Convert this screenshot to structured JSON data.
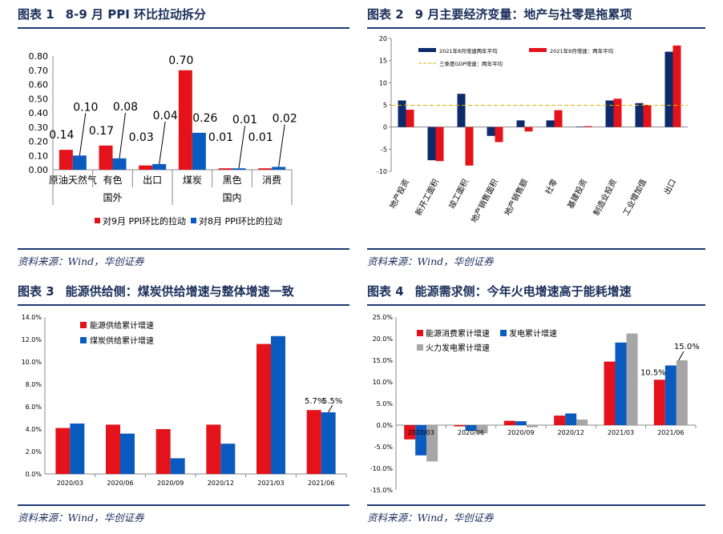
{
  "panels": [
    {
      "num": "图表 1",
      "title": "8-9 月 PPI 环比拉动拆分",
      "source": "资料来源：Wind，华创证券"
    },
    {
      "num": "图表 2",
      "title": "9 月主要经济变量：地产与社零是拖累项",
      "source": "资料来源：Wind，华创证券"
    },
    {
      "num": "图表 3",
      "title": "能源供给侧：煤炭供给增速与整体增速一致",
      "source": "资料来源：Wind，华创证券"
    },
    {
      "num": "图表 4",
      "title": "能源需求侧：今年火电增速高于能耗增速",
      "source": "资料来源：Wind，华创证券"
    }
  ],
  "colors": {
    "red": "#e3121b",
    "blue": "#0a5bbf",
    "navy": "#0d2a6b",
    "gray": "#a6a6a6",
    "gold": "#e0b000",
    "title": "#1a2e5a"
  },
  "chart_data": [
    {
      "type": "bar",
      "categories": [
        "原油天然气",
        "有色",
        "出口",
        "煤炭",
        "黑色",
        "消费"
      ],
      "groups": [
        {
          "label": "国外",
          "span": 3
        },
        {
          "label": "国内",
          "span": 3
        }
      ],
      "series": [
        {
          "name": "对9月 PPI环比的拉动",
          "values": [
            0.14,
            0.17,
            0.03,
            0.7,
            0.01,
            0.01
          ]
        },
        {
          "name": "对8月 PPI环比的拉动",
          "values": [
            0.1,
            0.08,
            0.04,
            0.26,
            0.01,
            0.02
          ]
        }
      ],
      "data_labels": [
        [
          "0.14",
          "0.17",
          "0.03",
          "0.70",
          "0.01",
          "0.01"
        ],
        [
          "0.10",
          "0.08",
          "0.04",
          "0.26",
          "0.01",
          "0.02"
        ]
      ],
      "ylim": [
        0,
        0.8
      ],
      "yticks": [
        "0.00",
        "0.10",
        "0.20",
        "0.30",
        "0.40",
        "0.50",
        "0.60",
        "0.70",
        "0.80"
      ],
      "grid": false,
      "legend": "bottom"
    },
    {
      "type": "bar",
      "categories": [
        "地产投资",
        "新开工面积",
        "竣工面积",
        "地产销售面积",
        "地产销售额",
        "社零",
        "基建投资",
        "制造业投资",
        "工业增加值",
        "出口"
      ],
      "series": [
        {
          "name": "2021年8月增速两年平均",
          "values": [
            6.0,
            -7.5,
            7.5,
            -2.0,
            1.5,
            1.5,
            0.1,
            6.0,
            5.4,
            17.0
          ]
        },
        {
          "name": "2021年9月增速：两年平均",
          "values": [
            3.9,
            -7.7,
            -8.7,
            -3.4,
            -1.0,
            3.8,
            0.2,
            6.4,
            5.0,
            18.4
          ]
        }
      ],
      "reference_line": {
        "name": "三季度GDP增速：两年平均",
        "value": 4.9
      },
      "ylim": [
        -10,
        20
      ],
      "yticks": [
        "-10",
        "-5",
        "0",
        "5",
        "10",
        "15",
        "20"
      ],
      "grid": false,
      "legend": "top"
    },
    {
      "type": "bar",
      "categories": [
        "2020/03",
        "2020/06",
        "2020/09",
        "2020/12",
        "2021/03",
        "2021/06"
      ],
      "series": [
        {
          "name": "能源供给累计增速",
          "values": [
            4.1,
            4.4,
            4.0,
            4.4,
            11.6,
            5.7
          ]
        },
        {
          "name": "煤炭供给累计增速",
          "values": [
            4.5,
            3.6,
            1.4,
            2.7,
            12.3,
            5.5
          ]
        }
      ],
      "annotations": [
        "5.7%",
        "5.5%"
      ],
      "ylim": [
        0,
        14
      ],
      "yticks": [
        "0.0%",
        "2.0%",
        "4.0%",
        "6.0%",
        "8.0%",
        "10.0%",
        "12.0%",
        "14.0%"
      ],
      "grid": false,
      "legend": "top-left"
    },
    {
      "type": "bar",
      "categories": [
        "2020/03",
        "2020/06",
        "2020/09",
        "2020/12",
        "2021/03",
        "2021/06"
      ],
      "series": [
        {
          "name": "能源消费累计增速",
          "values": [
            -3.3,
            -0.3,
            1.0,
            2.2,
            14.7,
            10.5
          ]
        },
        {
          "name": "发电累计增速",
          "values": [
            -7.0,
            -1.3,
            0.9,
            2.7,
            19.1,
            13.8
          ]
        },
        {
          "name": "火力发电累计增速",
          "values": [
            -8.4,
            -1.9,
            -0.5,
            1.3,
            21.2,
            15.0
          ]
        }
      ],
      "annotations": [
        "10.5%",
        "15.0%"
      ],
      "ylim": [
        -15,
        25
      ],
      "yticks": [
        "-15.0%",
        "-10.0%",
        "-5.0%",
        "0.0%",
        "5.0%",
        "10.0%",
        "15.0%",
        "20.0%",
        "25.0%"
      ],
      "grid": false,
      "legend": "top-left"
    }
  ]
}
